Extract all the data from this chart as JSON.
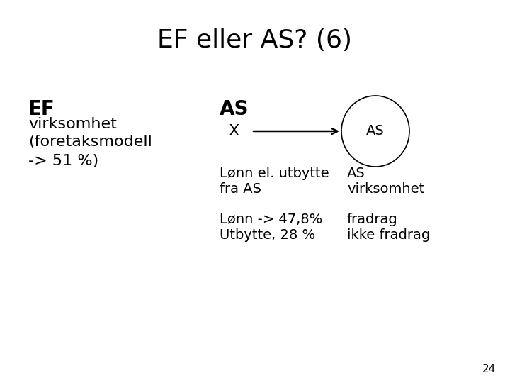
{
  "title": "EF eller AS? (6)",
  "title_fontsize": 26,
  "title_fontweight": "normal",
  "bg_color": "#ffffff",
  "left_label": "EF",
  "left_line1": "virksomhet",
  "left_line2": "(foretaksmodell",
  "left_line3": "-> 51 %)",
  "right_header": "AS",
  "x_label": "X",
  "circle_label": "AS",
  "below_left_line1": "Lønn el. utbytte",
  "below_left_line2": "fra AS",
  "below_right_line1": "AS",
  "below_right_line2": "virksomhet",
  "row2_left_line1": "Lønn -> 47,8%",
  "row2_left_line2": "Utbytte, 28 %",
  "row2_right_line1": "fradrag",
  "row2_right_line2": "ikke fradrag",
  "page_number": "24",
  "font_family": "DejaVu Sans",
  "title_fs": 26,
  "header_fs": 20,
  "body_fs": 16,
  "small_fs": 14,
  "tiny_fs": 11
}
